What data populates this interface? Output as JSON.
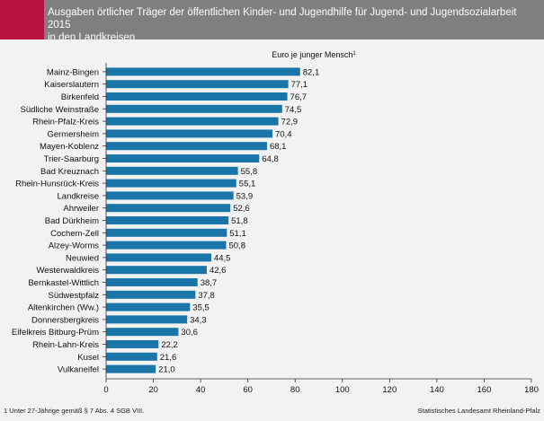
{
  "header": {
    "title": "Ausgaben örtlicher Träger der öffentlichen Kinder- und Jugendhilfe für Jugend- und Jugendsozialarbeit 2015\nin den Landkreisen"
  },
  "colors": {
    "accent": "#b7113e",
    "header_bg": "#7f7f7f",
    "bar": "#1a75a8",
    "background": "#f2f2f2"
  },
  "footnote": "1 Unter 27-Jährige gemäß § 7 Abs. 4 SGB VIII.",
  "source": "Statistisches Landesamt Rheinland-Pfalz",
  "chart_data": {
    "type": "bar",
    "orientation": "horizontal",
    "subtitle": "Euro je junger Mensch",
    "subtitle_sup": "1",
    "categories": [
      "Mainz-Bingen",
      "Kaiserslautern",
      "Birkenfeld",
      "Südliche Weinstraße",
      "Rhein-Pfalz-Kreis",
      "Germersheim",
      "Mayen-Koblenz",
      "Trier-Saarburg",
      "Bad Kreuznach",
      "Rhein-Hunsrück-Kreis",
      "Landkreise",
      "Ahrweiler",
      "Bad Dürkheim",
      "Cochem-Zell",
      "Alzey-Worms",
      "Neuwied",
      "Westerwaldkreis",
      "Bernkastel-Wittlich",
      "Südwestpfalz",
      "Altenkirchen (Ww.)",
      "Donnersbergkreis",
      "Eifelkreis Bitburg-Prüm",
      "Rhein-Lahn-Kreis",
      "Kusel",
      "Vulkaneifel"
    ],
    "values": [
      82.1,
      77.1,
      76.7,
      74.5,
      72.9,
      70.4,
      68.1,
      64.8,
      55.8,
      55.1,
      53.9,
      52.6,
      51.8,
      51.1,
      50.8,
      44.5,
      42.6,
      38.7,
      37.8,
      35.5,
      34.3,
      30.6,
      22.2,
      21.6,
      21.0
    ],
    "value_labels": [
      "82,1",
      "77,1",
      "76,7",
      "74,5",
      "72,9",
      "70,4",
      "68,1",
      "64,8",
      "55,8",
      "55,1",
      "53,9",
      "52,6",
      "51,8",
      "51,1",
      "50,8",
      "44,5",
      "42,6",
      "38,7",
      "37,8",
      "35,5",
      "34,3",
      "30,6",
      "22,2",
      "21,6",
      "21,0"
    ],
    "xlim": [
      0,
      180
    ],
    "xticks": [
      0,
      20,
      40,
      60,
      80,
      100,
      120,
      140,
      160,
      180
    ],
    "grid": false
  }
}
